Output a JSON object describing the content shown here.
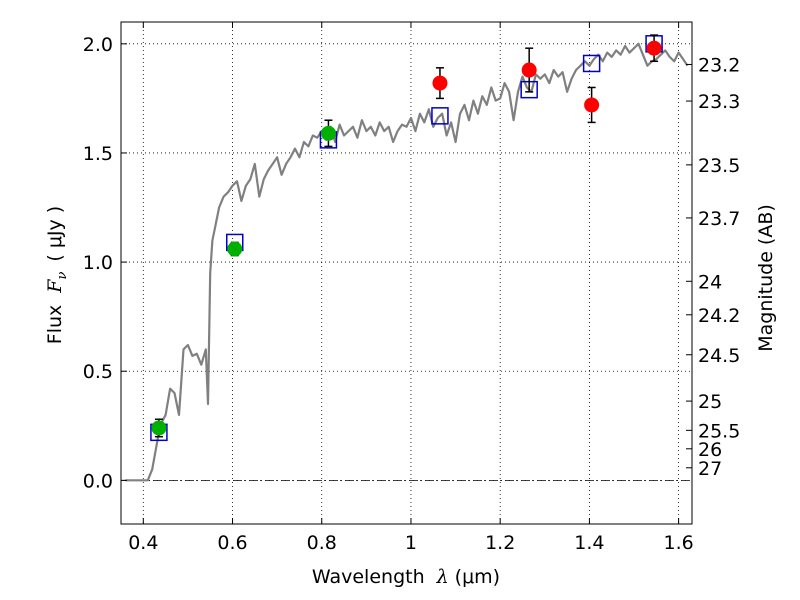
{
  "chart_data": {
    "type": "scatter",
    "xlabel_prefix": "Wavelength",
    "xlabel_var": "λ",
    "xlabel_unit": "(μm)",
    "ylabel_prefix": "Flux",
    "ylabel_var": "F",
    "ylabel_sub": "ν",
    "ylabel_unit": "( μJy )",
    "y2label": "Magnitude (AB)",
    "xlim": [
      0.35,
      1.63
    ],
    "ylim": [
      -0.2,
      2.1
    ],
    "x_ticks": [
      0.4,
      0.6,
      0.8,
      1.0,
      1.2,
      1.4,
      1.6
    ],
    "x_tick_labels": [
      "0.4",
      "0.6",
      "0.8",
      "1",
      "1.2",
      "1.4",
      "1.6"
    ],
    "y_ticks": [
      0.0,
      0.5,
      1.0,
      1.5,
      2.0
    ],
    "y_tick_labels": [
      "0.0",
      "0.5",
      "1.0",
      "1.5",
      "2.0"
    ],
    "y2_tick_labels": [
      "23.2",
      "23.3",
      "23.5",
      "23.7",
      "24",
      "24.2",
      "24.5",
      "25",
      "25.5",
      "26",
      "27"
    ],
    "grid": true,
    "colors": {
      "model": "#808080",
      "green_points": "#00b000",
      "red_points": "#ff0000",
      "model_boxes": "#0000cc",
      "errorbar": "#000000",
      "zero_line": "#000000"
    },
    "series": [
      {
        "name": "model spectrum",
        "kind": "line",
        "x": [
          0.36,
          0.41,
          0.42,
          0.435,
          0.44,
          0.45,
          0.46,
          0.47,
          0.48,
          0.49,
          0.5,
          0.51,
          0.52,
          0.53,
          0.54,
          0.545,
          0.55,
          0.555,
          0.56,
          0.57,
          0.58,
          0.59,
          0.6,
          0.61,
          0.62,
          0.63,
          0.64,
          0.65,
          0.66,
          0.67,
          0.68,
          0.69,
          0.7,
          0.71,
          0.72,
          0.73,
          0.74,
          0.75,
          0.76,
          0.77,
          0.78,
          0.79,
          0.8,
          0.81,
          0.82,
          0.83,
          0.84,
          0.85,
          0.86,
          0.87,
          0.88,
          0.89,
          0.9,
          0.91,
          0.92,
          0.93,
          0.94,
          0.95,
          0.96,
          0.97,
          0.98,
          0.99,
          1.0,
          1.01,
          1.02,
          1.03,
          1.04,
          1.05,
          1.06,
          1.07,
          1.08,
          1.09,
          1.1,
          1.11,
          1.12,
          1.13,
          1.14,
          1.15,
          1.16,
          1.17,
          1.18,
          1.19,
          1.2,
          1.21,
          1.22,
          1.23,
          1.24,
          1.25,
          1.26,
          1.27,
          1.28,
          1.29,
          1.3,
          1.31,
          1.32,
          1.33,
          1.34,
          1.35,
          1.36,
          1.37,
          1.38,
          1.39,
          1.4,
          1.41,
          1.42,
          1.43,
          1.44,
          1.45,
          1.46,
          1.47,
          1.48,
          1.49,
          1.5,
          1.51,
          1.52,
          1.53,
          1.54,
          1.55,
          1.56,
          1.57,
          1.58,
          1.59,
          1.6,
          1.61,
          1.62
        ],
        "y": [
          0.0,
          0.0,
          0.05,
          0.22,
          0.26,
          0.3,
          0.42,
          0.4,
          0.3,
          0.6,
          0.62,
          0.57,
          0.58,
          0.53,
          0.6,
          0.35,
          0.95,
          1.1,
          1.15,
          1.25,
          1.3,
          1.32,
          1.35,
          1.37,
          1.28,
          1.35,
          1.38,
          1.45,
          1.3,
          1.38,
          1.42,
          1.45,
          1.48,
          1.4,
          1.45,
          1.48,
          1.52,
          1.48,
          1.55,
          1.53,
          1.58,
          1.57,
          1.6,
          1.56,
          1.62,
          1.55,
          1.63,
          1.58,
          1.6,
          1.62,
          1.57,
          1.65,
          1.6,
          1.62,
          1.58,
          1.64,
          1.6,
          1.62,
          1.55,
          1.6,
          1.63,
          1.62,
          1.66,
          1.6,
          1.68,
          1.64,
          1.7,
          1.62,
          1.66,
          1.68,
          1.58,
          1.64,
          1.55,
          1.68,
          1.72,
          1.65,
          1.74,
          1.68,
          1.76,
          1.72,
          1.8,
          1.74,
          1.75,
          1.82,
          1.78,
          1.65,
          1.78,
          1.85,
          1.8,
          1.78,
          1.86,
          1.84,
          1.86,
          1.82,
          1.88,
          1.85,
          1.87,
          1.78,
          1.84,
          1.88,
          1.9,
          1.92,
          1.9,
          1.93,
          1.95,
          1.92,
          1.96,
          1.94,
          1.97,
          1.95,
          1.99,
          1.96,
          1.98,
          2.0,
          1.95,
          1.9,
          1.92,
          1.93,
          1.95,
          1.97,
          1.94,
          1.92,
          1.96,
          1.93,
          1.9
        ]
      },
      {
        "name": "model photometry",
        "kind": "box",
        "x": [
          0.435,
          0.605,
          0.815,
          1.065,
          1.265,
          1.405,
          1.545
        ],
        "y": [
          0.22,
          1.09,
          1.56,
          1.67,
          1.79,
          1.91,
          2.0
        ]
      },
      {
        "name": "observed (green)",
        "kind": "point",
        "x": [
          0.435,
          0.605,
          0.815
        ],
        "y": [
          0.24,
          1.06,
          1.59
        ],
        "yerr": [
          0.04,
          0.03,
          0.06
        ]
      },
      {
        "name": "observed (red)",
        "kind": "point",
        "x": [
          1.065,
          1.265,
          1.405,
          1.545
        ],
        "y": [
          1.82,
          1.88,
          1.72,
          1.98
        ],
        "yerr": [
          0.07,
          0.1,
          0.08,
          0.06
        ]
      }
    ]
  }
}
